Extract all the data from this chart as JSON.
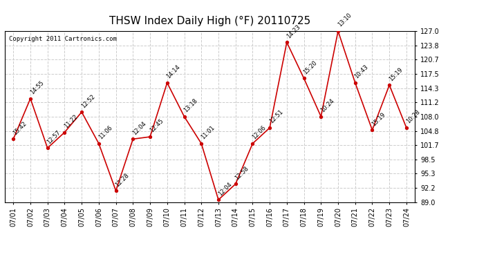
{
  "title": "THSW Index Daily High (°F) 20110725",
  "copyright": "Copyright 2011 Cartronics.com",
  "x_labels": [
    "07/01",
    "07/02",
    "07/03",
    "07/04",
    "07/05",
    "07/06",
    "07/07",
    "07/08",
    "07/09",
    "07/10",
    "07/11",
    "07/12",
    "07/13",
    "07/14",
    "07/15",
    "07/16",
    "07/17",
    "07/18",
    "07/19",
    "07/20",
    "07/21",
    "07/22",
    "07/23",
    "07/24"
  ],
  "y_values": [
    103.0,
    112.0,
    101.0,
    104.5,
    109.0,
    102.0,
    91.5,
    103.0,
    103.5,
    115.5,
    108.0,
    102.0,
    89.5,
    93.0,
    102.0,
    105.5,
    124.5,
    116.5,
    108.0,
    127.0,
    115.5,
    105.0,
    115.0,
    105.5
  ],
  "time_labels": [
    "15:42",
    "14:55",
    "12:57",
    "11:22",
    "12:52",
    "11:06",
    "12:28",
    "12:04",
    "12:45",
    "14:14",
    "13:18",
    "11:01",
    "12:04",
    "12:58",
    "12:06",
    "12:51",
    "14:23",
    "15:20",
    "10:24",
    "13:10",
    "10:43",
    "15:19",
    "15:19",
    "10:28"
  ],
  "y_ticks": [
    89.0,
    92.2,
    95.3,
    98.5,
    101.7,
    104.8,
    108.0,
    111.2,
    114.3,
    117.5,
    120.7,
    123.8,
    127.0
  ],
  "ylim": [
    89.0,
    127.0
  ],
  "line_color": "#cc0000",
  "marker_color": "#cc0000",
  "background_color": "#ffffff",
  "grid_color": "#cccccc",
  "title_fontsize": 11,
  "tick_fontsize": 7,
  "annot_fontsize": 6
}
